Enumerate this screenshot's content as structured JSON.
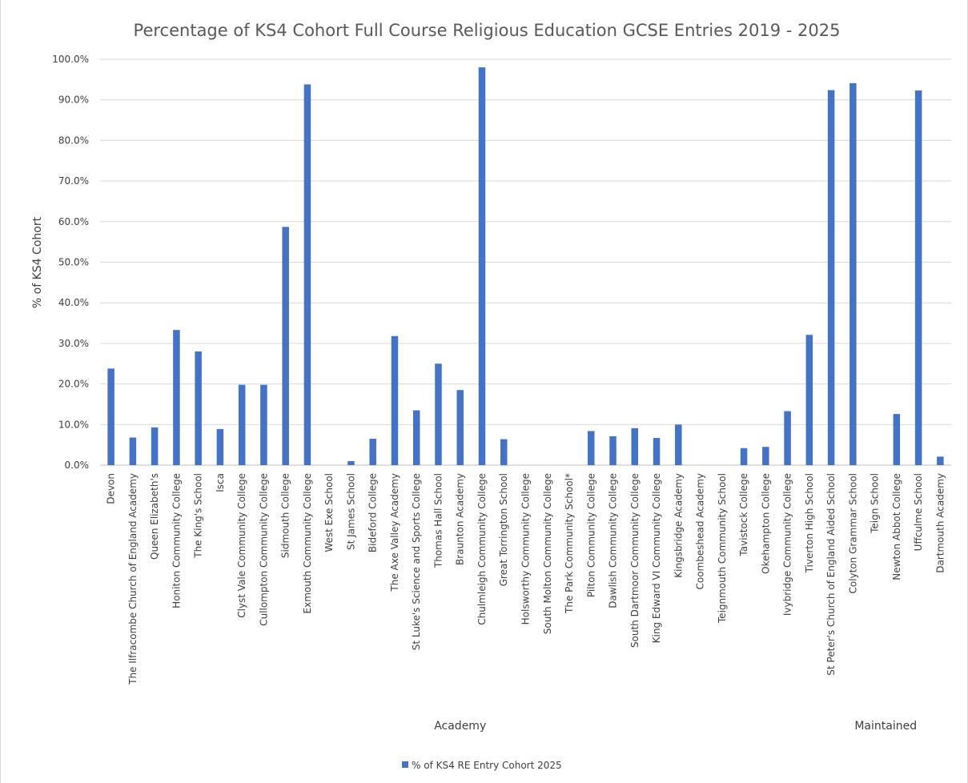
{
  "chart_data": {
    "type": "bar",
    "title": "Percentage of KS4 Cohort Full Course Religious Education GCSE Entries 2019 - 2025",
    "xlabel": "",
    "ylabel": "% of KS4 Cohort",
    "ylim": [
      0,
      100
    ],
    "yticks": [
      "0.0%",
      "10.0%",
      "20.0%",
      "30.0%",
      "40.0%",
      "50.0%",
      "60.0%",
      "70.0%",
      "80.0%",
      "90.0%",
      "100.0%"
    ],
    "grid": true,
    "legend_position": "bottom",
    "bar_color": "#4472c4",
    "categories": [
      "Devon",
      "The Ilfracombe Church of England Academy",
      "Queen Elizabeth's",
      "Honiton Community College",
      "The King's School",
      "Isca",
      "Clyst Vale Community College",
      "Cullompton Community College",
      "Sidmouth College",
      "Exmouth Community College",
      "West Exe School",
      "St James School",
      "Bideford College",
      "The Axe Valley Academy",
      "St Luke's Science and Sports College",
      "Thomas Hall School",
      "Braunton Academy",
      "Chulmleigh Community College",
      "Great Torrington School",
      "Holsworthy Community College",
      "South Molton Community College",
      "The Park Community School*",
      "Pilton Community College",
      "Dawlish Community College",
      "South Dartmoor Community College",
      "King Edward VI Community College",
      "Kingsbridge Academy",
      "Coombeshead Academy",
      "Teignmouth Community School",
      "Tavistock College",
      "Okehampton College",
      "Ivybridge Community College",
      "Tiverton High School",
      "St Peter's Church of England Aided School",
      "Colyton Grammar School",
      "Teign School",
      "Newton Abbot College",
      "Uffculme School",
      "Dartmouth Academy"
    ],
    "series": [
      {
        "name": "% of KS4 RE Entry Cohort 2025",
        "values": [
          23.8,
          6.8,
          9.3,
          33.3,
          28.0,
          8.9,
          19.8,
          19.8,
          58.7,
          93.8,
          0.0,
          1.0,
          6.5,
          31.8,
          13.5,
          25.0,
          18.5,
          98.0,
          6.4,
          0.0,
          0.0,
          0.0,
          8.4,
          7.1,
          9.1,
          6.7,
          10.0,
          0.0,
          0.0,
          4.2,
          4.5,
          13.3,
          32.1,
          92.4,
          94.1,
          0.0,
          12.6,
          92.3,
          2.1
        ]
      }
    ],
    "groups": [
      {
        "label": "Academy",
        "from": 0,
        "to": 32
      },
      {
        "label": "Maintained",
        "from": 33,
        "to": 38
      }
    ]
  }
}
